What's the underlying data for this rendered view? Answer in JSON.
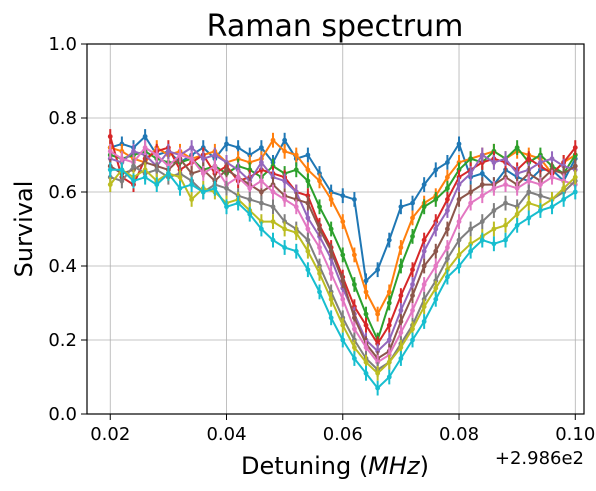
{
  "chart_data": {
    "type": "line",
    "title": "Raman spectrum",
    "xlabel": "Detuning (",
    "xlabel_math": "MHz",
    "xlabel_close": ")",
    "ylabel": "Survival",
    "x_offset_label": "+2.986e2",
    "xlim": [
      0.016,
      0.1015
    ],
    "ylim": [
      0.0,
      1.0
    ],
    "xticks": [
      0.02,
      0.04,
      0.06,
      0.08,
      0.1
    ],
    "xtick_labels": [
      "0.02",
      "0.04",
      "0.06",
      "0.08",
      "0.10"
    ],
    "yticks": [
      0.0,
      0.2,
      0.4,
      0.6,
      0.8,
      1.0
    ],
    "ytick_labels": [
      "0.0",
      "0.2",
      "0.4",
      "0.6",
      "0.8",
      "1.0"
    ],
    "grid": true,
    "x": [
      0.02,
      0.022,
      0.024,
      0.026,
      0.028,
      0.03,
      0.032,
      0.034,
      0.036,
      0.038,
      0.04,
      0.042,
      0.044,
      0.046,
      0.048,
      0.05,
      0.052,
      0.054,
      0.056,
      0.058,
      0.06,
      0.062,
      0.064,
      0.066,
      0.068,
      0.07,
      0.072,
      0.074,
      0.076,
      0.078,
      0.08,
      0.082,
      0.084,
      0.086,
      0.088,
      0.09,
      0.092,
      0.094,
      0.096,
      0.098,
      0.1
    ],
    "error_bar": 0.04,
    "series": [
      {
        "color": "#1f77b4",
        "values": [
          0.72,
          0.73,
          0.72,
          0.75,
          0.7,
          0.71,
          0.68,
          0.7,
          0.72,
          0.69,
          0.73,
          0.72,
          0.7,
          0.72,
          0.68,
          0.74,
          0.69,
          0.7,
          0.65,
          0.6,
          0.59,
          0.58,
          0.36,
          0.39,
          0.47,
          0.56,
          0.57,
          0.62,
          0.66,
          0.68,
          0.73,
          0.64,
          0.65,
          0.62,
          0.66,
          0.64,
          0.63,
          0.66,
          0.66,
          0.63,
          0.69
        ]
      },
      {
        "color": "#ff7f0e",
        "values": [
          0.72,
          0.71,
          0.69,
          0.68,
          0.72,
          0.7,
          0.71,
          0.69,
          0.7,
          0.71,
          0.68,
          0.69,
          0.68,
          0.69,
          0.74,
          0.71,
          0.7,
          0.66,
          0.63,
          0.58,
          0.52,
          0.43,
          0.33,
          0.27,
          0.33,
          0.45,
          0.53,
          0.57,
          0.59,
          0.64,
          0.68,
          0.69,
          0.7,
          0.71,
          0.69,
          0.71,
          0.7,
          0.69,
          0.65,
          0.68,
          0.7
        ]
      },
      {
        "color": "#2ca02c",
        "values": [
          0.7,
          0.69,
          0.7,
          0.71,
          0.69,
          0.68,
          0.68,
          0.69,
          0.66,
          0.67,
          0.65,
          0.67,
          0.66,
          0.64,
          0.67,
          0.65,
          0.66,
          0.63,
          0.56,
          0.5,
          0.43,
          0.35,
          0.27,
          0.2,
          0.3,
          0.4,
          0.48,
          0.56,
          0.58,
          0.61,
          0.66,
          0.69,
          0.68,
          0.71,
          0.69,
          0.72,
          0.68,
          0.7,
          0.67,
          0.65,
          0.7
        ]
      },
      {
        "color": "#d62728",
        "values": [
          0.75,
          0.64,
          0.62,
          0.69,
          0.71,
          0.72,
          0.66,
          0.68,
          0.7,
          0.65,
          0.67,
          0.63,
          0.64,
          0.66,
          0.65,
          0.64,
          0.6,
          0.59,
          0.51,
          0.45,
          0.37,
          0.29,
          0.24,
          0.19,
          0.24,
          0.32,
          0.39,
          0.47,
          0.52,
          0.58,
          0.64,
          0.66,
          0.68,
          0.69,
          0.68,
          0.66,
          0.69,
          0.67,
          0.65,
          0.68,
          0.72
        ]
      },
      {
        "color": "#9467bd",
        "values": [
          0.69,
          0.68,
          0.71,
          0.7,
          0.67,
          0.71,
          0.7,
          0.72,
          0.69,
          0.7,
          0.68,
          0.66,
          0.63,
          0.68,
          0.64,
          0.63,
          0.6,
          0.53,
          0.48,
          0.42,
          0.34,
          0.27,
          0.2,
          0.17,
          0.2,
          0.28,
          0.35,
          0.44,
          0.5,
          0.55,
          0.62,
          0.65,
          0.7,
          0.68,
          0.69,
          0.65,
          0.66,
          0.68,
          0.69,
          0.67,
          0.66
        ]
      },
      {
        "color": "#8c564b",
        "values": [
          0.67,
          0.65,
          0.66,
          0.68,
          0.67,
          0.66,
          0.69,
          0.65,
          0.66,
          0.63,
          0.66,
          0.64,
          0.62,
          0.6,
          0.62,
          0.59,
          0.58,
          0.57,
          0.5,
          0.44,
          0.36,
          0.26,
          0.19,
          0.15,
          0.17,
          0.25,
          0.32,
          0.4,
          0.44,
          0.5,
          0.58,
          0.6,
          0.62,
          0.62,
          0.64,
          0.62,
          0.65,
          0.63,
          0.66,
          0.65,
          0.67
        ]
      },
      {
        "color": "#e377c2",
        "values": [
          0.71,
          0.69,
          0.68,
          0.72,
          0.7,
          0.67,
          0.7,
          0.69,
          0.65,
          0.67,
          0.62,
          0.64,
          0.61,
          0.63,
          0.6,
          0.58,
          0.56,
          0.5,
          0.45,
          0.38,
          0.31,
          0.23,
          0.18,
          0.14,
          0.16,
          0.22,
          0.28,
          0.35,
          0.4,
          0.45,
          0.52,
          0.57,
          0.59,
          0.61,
          0.62,
          0.61,
          0.63,
          0.62,
          0.64,
          0.63,
          0.62
        ]
      },
      {
        "color": "#7f7f7f",
        "values": [
          0.64,
          0.63,
          0.67,
          0.65,
          0.66,
          0.64,
          0.65,
          0.63,
          0.6,
          0.62,
          0.61,
          0.59,
          0.58,
          0.57,
          0.56,
          0.52,
          0.5,
          0.47,
          0.4,
          0.33,
          0.26,
          0.2,
          0.15,
          0.12,
          0.14,
          0.19,
          0.24,
          0.31,
          0.36,
          0.42,
          0.47,
          0.5,
          0.52,
          0.55,
          0.57,
          0.56,
          0.6,
          0.59,
          0.58,
          0.6,
          0.63
        ]
      },
      {
        "color": "#bcbd22",
        "values": [
          0.62,
          0.66,
          0.64,
          0.66,
          0.63,
          0.65,
          0.64,
          0.58,
          0.61,
          0.6,
          0.57,
          0.58,
          0.55,
          0.52,
          0.52,
          0.5,
          0.49,
          0.44,
          0.38,
          0.31,
          0.24,
          0.18,
          0.14,
          0.11,
          0.14,
          0.18,
          0.23,
          0.29,
          0.34,
          0.39,
          0.43,
          0.46,
          0.48,
          0.5,
          0.51,
          0.54,
          0.57,
          0.56,
          0.58,
          0.61,
          0.64
        ]
      },
      {
        "color": "#17becf",
        "values": [
          0.66,
          0.66,
          0.63,
          0.64,
          0.62,
          0.65,
          0.61,
          0.62,
          0.6,
          0.61,
          0.56,
          0.57,
          0.54,
          0.5,
          0.47,
          0.45,
          0.44,
          0.39,
          0.33,
          0.26,
          0.2,
          0.15,
          0.11,
          0.07,
          0.1,
          0.15,
          0.2,
          0.25,
          0.31,
          0.37,
          0.4,
          0.44,
          0.47,
          0.46,
          0.47,
          0.51,
          0.53,
          0.55,
          0.56,
          0.58,
          0.6
        ]
      }
    ]
  }
}
